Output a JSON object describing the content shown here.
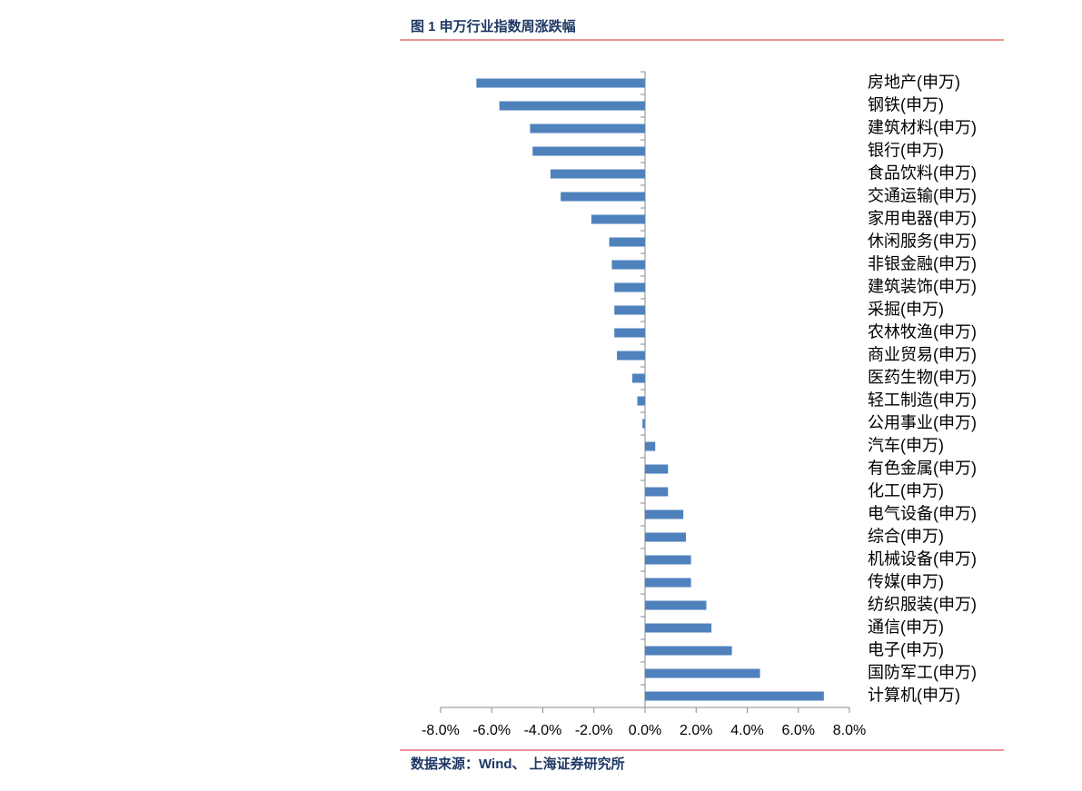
{
  "chart_data": {
    "type": "hbar",
    "title": "图 1 申万行业指数周涨跌幅",
    "source": "数据来源：Wind、 上海证券研究所",
    "categories": [
      "房地产(申万)",
      "钢铁(申万)",
      "建筑材料(申万)",
      "银行(申万)",
      "食品饮料(申万)",
      "交通运输(申万)",
      "家用电器(申万)",
      "休闲服务(申万)",
      "非银金融(申万)",
      "建筑装饰(申万)",
      "采掘(申万)",
      "农林牧渔(申万)",
      "商业贸易(申万)",
      "医药生物(申万)",
      "轻工制造(申万)",
      "公用事业(申万)",
      "汽车(申万)",
      "有色金属(申万)",
      "化工(申万)",
      "电气设备(申万)",
      "综合(申万)",
      "机械设备(申万)",
      "传媒(申万)",
      "纺织服装(申万)",
      "通信(申万)",
      "电子(申万)",
      "国防军工(申万)",
      "计算机(申万)"
    ],
    "values": [
      -6.6,
      -5.7,
      -4.5,
      -4.4,
      -3.7,
      -3.3,
      -2.1,
      -1.4,
      -1.3,
      -1.2,
      -1.2,
      -1.2,
      -1.1,
      -0.5,
      -0.3,
      -0.1,
      0.4,
      0.9,
      0.9,
      1.5,
      1.6,
      1.8,
      1.8,
      2.4,
      2.6,
      3.4,
      4.5,
      7.0
    ],
    "color": "#4f81bd",
    "xlim": [
      -8,
      8
    ],
    "xticks": [
      {
        "value": -8,
        "label": "-8.0%"
      },
      {
        "value": -6,
        "label": "-6.0%"
      },
      {
        "value": -4,
        "label": "-4.0%"
      },
      {
        "value": -2,
        "label": "-2.0%"
      },
      {
        "value": 0,
        "label": "0.0%"
      },
      {
        "value": 2,
        "label": "2.0%"
      },
      {
        "value": 4,
        "label": "4.0%"
      },
      {
        "value": 6,
        "label": "6.0%"
      },
      {
        "value": 8,
        "label": "8.0%"
      }
    ]
  }
}
